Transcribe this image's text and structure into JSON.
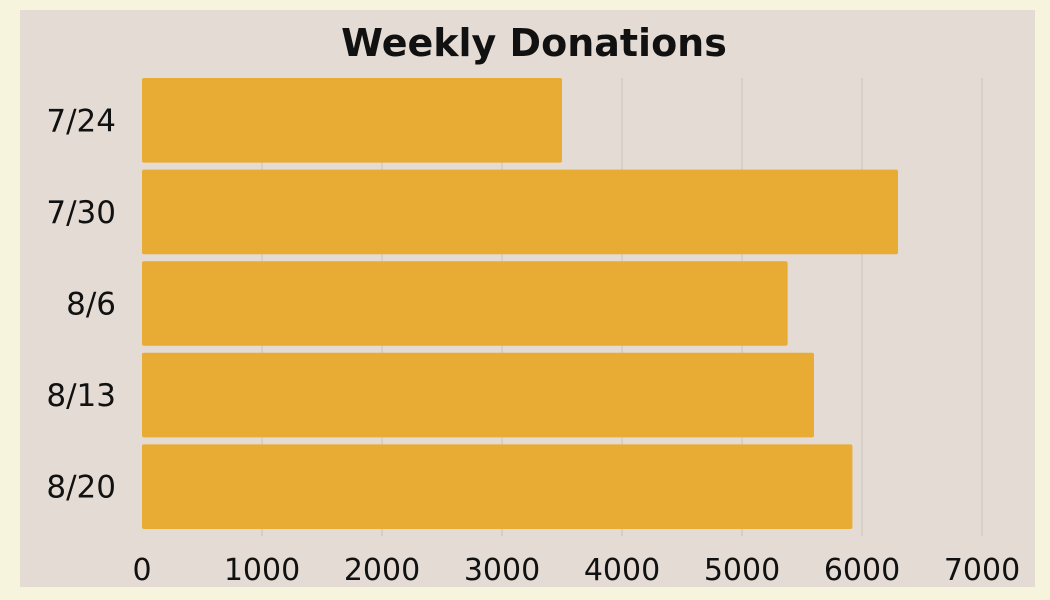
{
  "chart_data": {
    "type": "bar",
    "orientation": "horizontal",
    "title": "Weekly Donations",
    "xlabel": "",
    "ylabel": "",
    "categories": [
      "7/24",
      "7/30",
      "8/6",
      "8/13",
      "8/20"
    ],
    "values": [
      3500,
      6300,
      5380,
      5600,
      5920
    ],
    "xlim": [
      0,
      7000
    ],
    "xticks": [
      "0",
      "1000",
      "2000",
      "3000",
      "4000",
      "5000",
      "6000",
      "7000"
    ],
    "grid": true,
    "legend": "none",
    "colors": {
      "bar": "#e8ab33",
      "panel": "#e3dbd4",
      "page": "#f6f4dc",
      "grid": "#c9c3bd",
      "text": "#111111"
    }
  }
}
